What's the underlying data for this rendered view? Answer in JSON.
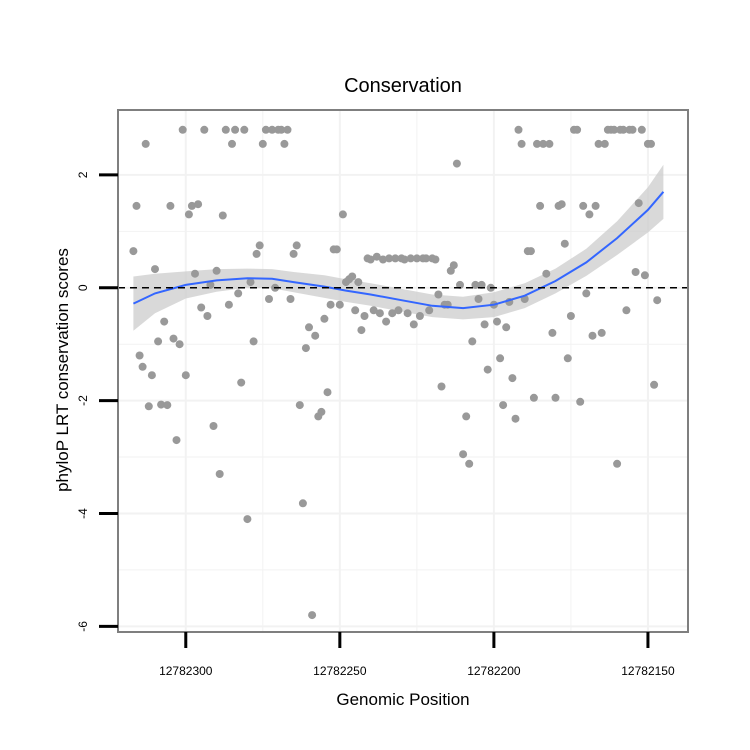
{
  "chart_data": {
    "type": "scatter",
    "title": "Conservation",
    "xlabel": "Genomic Position",
    "ylabel": "phyloP LRT conservation scores",
    "x_reversed": true,
    "xlim": [
      12782322,
      12782137
    ],
    "ylim": [
      -6.1,
      3.15
    ],
    "x_ticks": [
      12782300,
      12782250,
      12782200,
      12782150
    ],
    "x_tick_labels": [
      "12782300",
      "12782250",
      "12782200",
      "12782150"
    ],
    "y_ticks": [
      -6,
      -4,
      -2,
      0,
      2
    ],
    "y_tick_labels": [
      "-6",
      "-4",
      "-2",
      "0",
      "2"
    ],
    "reference_line": {
      "y": 0,
      "style": "dashed"
    },
    "colors": {
      "points": "#999999",
      "smooth": "#3366FF",
      "band": "#CCCCCC",
      "panel": "#FFFFFF",
      "grid": "#F2F2F2",
      "border": "#7F7F7F"
    },
    "points": [
      [
        12782317,
        0.65
      ],
      [
        12782316,
        1.45
      ],
      [
        12782315,
        -1.2
      ],
      [
        12782314,
        -1.4
      ],
      [
        12782313,
        2.55
      ],
      [
        12782312,
        -2.1
      ],
      [
        12782311,
        -1.55
      ],
      [
        12782310,
        0.33
      ],
      [
        12782309,
        -0.95
      ],
      [
        12782308,
        -2.07
      ],
      [
        12782307,
        -0.6
      ],
      [
        12782306,
        -2.08
      ],
      [
        12782305,
        1.45
      ],
      [
        12782304,
        -0.9
      ],
      [
        12782303,
        -2.7
      ],
      [
        12782302,
        -1.0
      ],
      [
        12782301,
        2.8
      ],
      [
        12782300,
        -1.55
      ],
      [
        12782299,
        1.3
      ],
      [
        12782298,
        1.45
      ],
      [
        12782297,
        0.25
      ],
      [
        12782296,
        1.48
      ],
      [
        12782295,
        -0.35
      ],
      [
        12782294,
        2.8
      ],
      [
        12782293,
        -0.5
      ],
      [
        12782292,
        0.05
      ],
      [
        12782291,
        -2.45
      ],
      [
        12782290,
        0.3
      ],
      [
        12782289,
        -3.3
      ],
      [
        12782288,
        1.28
      ],
      [
        12782287,
        2.8
      ],
      [
        12782286,
        -0.3
      ],
      [
        12782285,
        2.55
      ],
      [
        12782284,
        2.8
      ],
      [
        12782283,
        -0.1
      ],
      [
        12782282,
        -1.68
      ],
      [
        12782281,
        2.8
      ],
      [
        12782280,
        -4.1
      ],
      [
        12782279,
        0.1
      ],
      [
        12782278,
        -0.95
      ],
      [
        12782277,
        0.6
      ],
      [
        12782276,
        0.75
      ],
      [
        12782275,
        2.55
      ],
      [
        12782274,
        2.8
      ],
      [
        12782273,
        -0.2
      ],
      [
        12782272,
        2.8
      ],
      [
        12782271,
        0.0
      ],
      [
        12782270,
        2.8
      ],
      [
        12782269,
        2.8
      ],
      [
        12782268,
        2.55
      ],
      [
        12782267,
        2.8
      ],
      [
        12782266,
        -0.2
      ],
      [
        12782265,
        0.6
      ],
      [
        12782264,
        0.75
      ],
      [
        12782263,
        -2.08
      ],
      [
        12782262,
        -3.82
      ],
      [
        12782261,
        -1.07
      ],
      [
        12782260,
        -0.7
      ],
      [
        12782259,
        -5.8
      ],
      [
        12782258,
        -0.85
      ],
      [
        12782257,
        -2.28
      ],
      [
        12782256,
        -2.2
      ],
      [
        12782255,
        -0.55
      ],
      [
        12782254,
        -1.85
      ],
      [
        12782253,
        -0.3
      ],
      [
        12782252,
        0.68
      ],
      [
        12782251,
        0.68
      ],
      [
        12782250,
        -0.3
      ],
      [
        12782249,
        1.3
      ],
      [
        12782248,
        0.1
      ],
      [
        12782247,
        0.15
      ],
      [
        12782246,
        0.2
      ],
      [
        12782245,
        -0.4
      ],
      [
        12782244,
        0.1
      ],
      [
        12782243,
        -0.75
      ],
      [
        12782242,
        -0.5
      ],
      [
        12782241,
        0.52
      ],
      [
        12782240,
        0.5
      ],
      [
        12782239,
        -0.4
      ],
      [
        12782238,
        0.55
      ],
      [
        12782237,
        -0.45
      ],
      [
        12782236,
        0.5
      ],
      [
        12782235,
        -0.6
      ],
      [
        12782234,
        0.52
      ],
      [
        12782233,
        -0.45
      ],
      [
        12782232,
        0.52
      ],
      [
        12782231,
        -0.4
      ],
      [
        12782230,
        0.52
      ],
      [
        12782229,
        0.5
      ],
      [
        12782228,
        -0.45
      ],
      [
        12782227,
        0.52
      ],
      [
        12782226,
        -0.65
      ],
      [
        12782225,
        0.52
      ],
      [
        12782224,
        -0.5
      ],
      [
        12782223,
        0.52
      ],
      [
        12782222,
        0.52
      ],
      [
        12782221,
        -0.4
      ],
      [
        12782220,
        0.52
      ],
      [
        12782219,
        0.5
      ],
      [
        12782218,
        -0.12
      ],
      [
        12782217,
        -1.75
      ],
      [
        12782216,
        -0.3
      ],
      [
        12782215,
        -0.3
      ],
      [
        12782214,
        0.3
      ],
      [
        12782213,
        0.4
      ],
      [
        12782212,
        2.2
      ],
      [
        12782211,
        0.05
      ],
      [
        12782210,
        -2.95
      ],
      [
        12782209,
        -2.28
      ],
      [
        12782208,
        -3.12
      ],
      [
        12782207,
        -0.95
      ],
      [
        12782206,
        0.05
      ],
      [
        12782205,
        -0.2
      ],
      [
        12782204,
        0.05
      ],
      [
        12782203,
        -0.65
      ],
      [
        12782202,
        -1.45
      ],
      [
        12782201,
        0.0
      ],
      [
        12782200,
        -0.3
      ],
      [
        12782199,
        -0.6
      ],
      [
        12782198,
        -1.25
      ],
      [
        12782197,
        -2.08
      ],
      [
        12782196,
        -0.7
      ],
      [
        12782195,
        -0.25
      ],
      [
        12782194,
        -1.6
      ],
      [
        12782193,
        -2.32
      ],
      [
        12782192,
        2.8
      ],
      [
        12782191,
        2.55
      ],
      [
        12782190,
        -0.2
      ],
      [
        12782189,
        0.65
      ],
      [
        12782188,
        0.65
      ],
      [
        12782187,
        -1.95
      ],
      [
        12782186,
        2.55
      ],
      [
        12782185,
        1.45
      ],
      [
        12782184,
        2.55
      ],
      [
        12782183,
        0.25
      ],
      [
        12782182,
        2.55
      ],
      [
        12782181,
        -0.8
      ],
      [
        12782180,
        -1.95
      ],
      [
        12782179,
        1.45
      ],
      [
        12782178,
        1.48
      ],
      [
        12782177,
        0.78
      ],
      [
        12782176,
        -1.25
      ],
      [
        12782175,
        -0.5
      ],
      [
        12782174,
        2.8
      ],
      [
        12782173,
        2.8
      ],
      [
        12782172,
        -2.02
      ],
      [
        12782171,
        1.45
      ],
      [
        12782170,
        -0.1
      ],
      [
        12782169,
        1.3
      ],
      [
        12782168,
        -0.85
      ],
      [
        12782167,
        1.45
      ],
      [
        12782166,
        2.55
      ],
      [
        12782165,
        -0.8
      ],
      [
        12782164,
        2.55
      ],
      [
        12782163,
        2.8
      ],
      [
        12782162,
        2.8
      ],
      [
        12782161,
        2.8
      ],
      [
        12782160,
        -3.12
      ],
      [
        12782159,
        2.8
      ],
      [
        12782158,
        2.8
      ],
      [
        12782157,
        -0.4
      ],
      [
        12782156,
        2.8
      ],
      [
        12782155,
        2.8
      ],
      [
        12782154,
        0.28
      ],
      [
        12782153,
        1.5
      ],
      [
        12782152,
        2.8
      ],
      [
        12782151,
        0.22
      ],
      [
        12782150,
        2.55
      ],
      [
        12782149,
        2.55
      ],
      [
        12782148,
        -1.72
      ],
      [
        12782147,
        -0.22
      ]
    ],
    "smooth": [
      [
        12782317,
        -0.28
      ],
      [
        12782310,
        -0.1
      ],
      [
        12782300,
        0.05
      ],
      [
        12782290,
        0.13
      ],
      [
        12782280,
        0.17
      ],
      [
        12782272,
        0.16
      ],
      [
        12782265,
        0.1
      ],
      [
        12782255,
        0.02
      ],
      [
        12782248,
        -0.05
      ],
      [
        12782240,
        -0.12
      ],
      [
        12782230,
        -0.22
      ],
      [
        12782220,
        -0.32
      ],
      [
        12782210,
        -0.36
      ],
      [
        12782200,
        -0.3
      ],
      [
        12782190,
        -0.14
      ],
      [
        12782180,
        0.12
      ],
      [
        12782170,
        0.45
      ],
      [
        12782160,
        0.88
      ],
      [
        12782150,
        1.38
      ],
      [
        12782145,
        1.7
      ]
    ],
    "band_halfwidth": [
      [
        12782317,
        0.48
      ],
      [
        12782310,
        0.35
      ],
      [
        12782300,
        0.24
      ],
      [
        12782290,
        0.2
      ],
      [
        12782280,
        0.17
      ],
      [
        12782272,
        0.17
      ],
      [
        12782265,
        0.18
      ],
      [
        12782255,
        0.2
      ],
      [
        12782248,
        0.2
      ],
      [
        12782240,
        0.2
      ],
      [
        12782230,
        0.2
      ],
      [
        12782220,
        0.2
      ],
      [
        12782210,
        0.2
      ],
      [
        12782200,
        0.22
      ],
      [
        12782190,
        0.22
      ],
      [
        12782180,
        0.22
      ],
      [
        12782170,
        0.24
      ],
      [
        12782160,
        0.3
      ],
      [
        12782150,
        0.4
      ],
      [
        12782145,
        0.48
      ]
    ]
  }
}
